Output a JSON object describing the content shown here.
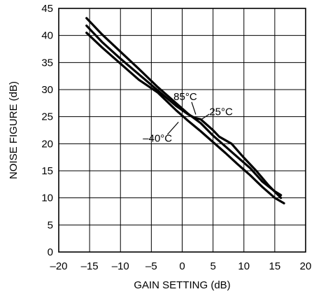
{
  "chart_data": {
    "type": "line",
    "xlabel": "GAIN SETTING (dB)",
    "ylabel": "NOISE FIGURE (dB)",
    "xlim": [
      -20,
      20
    ],
    "ylim": [
      0,
      45
    ],
    "x_ticks": [
      -20,
      -15,
      -10,
      -5,
      0,
      5,
      10,
      15,
      20
    ],
    "y_ticks": [
      0,
      5,
      10,
      15,
      20,
      25,
      30,
      35,
      40,
      45
    ],
    "x_tick_labels": [
      "–20",
      "–15",
      "–10",
      "–5",
      "0",
      "5",
      "10",
      "15",
      "20"
    ],
    "y_tick_labels": [
      "0",
      "5",
      "10",
      "15",
      "20",
      "25",
      "30",
      "35",
      "40",
      "45"
    ],
    "grid": true,
    "series": [
      {
        "name": "85°C",
        "x": [
          -15.5,
          -13,
          -10,
          -7,
          -4,
          -1,
          1,
          3,
          5,
          7,
          9,
          11,
          13,
          15,
          16
        ],
        "y": [
          43.2,
          40.2,
          37.0,
          33.8,
          30.5,
          27.5,
          25.5,
          23.8,
          21.5,
          19.5,
          17.5,
          15.5,
          13.0,
          11.2,
          10.5
        ]
      },
      {
        "name": "25°C",
        "x": [
          -15.5,
          -13,
          -10,
          -7,
          -4,
          -1,
          1,
          2,
          3,
          5,
          6,
          8,
          10,
          12,
          14,
          16
        ],
        "y": [
          41.8,
          38.8,
          35.7,
          32.8,
          29.9,
          27.0,
          25.4,
          24.8,
          24.5,
          22.5,
          21.3,
          20.0,
          17.4,
          15.0,
          12.3,
          10.0
        ]
      },
      {
        "name": "–40°C",
        "x": [
          -15.5,
          -13,
          -10,
          -7,
          -4,
          -1,
          1,
          3,
          5,
          7,
          9,
          11,
          13,
          15,
          16.5
        ],
        "y": [
          40.5,
          37.8,
          34.8,
          31.8,
          29.5,
          26.2,
          24.2,
          22.3,
          20.3,
          18.3,
          16.2,
          14.2,
          12.0,
          10.0,
          9.0
        ]
      }
    ],
    "annotations": [
      {
        "text": "85°C",
        "x": 0.5,
        "y": 28.7,
        "target": [
          2.2,
          25.4
        ]
      },
      {
        "text": "25°C",
        "x": 6.3,
        "y": 25.9,
        "target": [
          3.0,
          24.4
        ]
      },
      {
        "text": "–40°C",
        "x": -4.0,
        "y": 21.0,
        "target": [
          -0.6,
          24.0
        ]
      }
    ]
  }
}
